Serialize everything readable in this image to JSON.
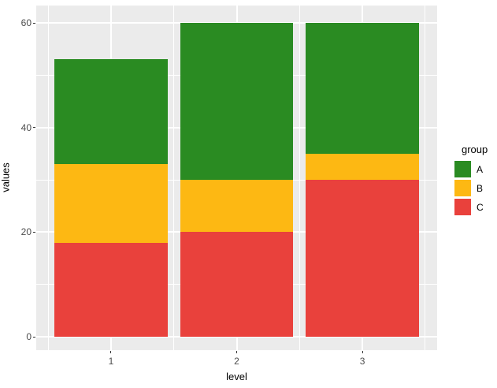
{
  "chart_data": {
    "type": "bar",
    "stacked": true,
    "title": "",
    "xlabel": "level",
    "ylabel": "values",
    "categories": [
      1,
      2,
      3
    ],
    "series": [
      {
        "name": "A",
        "color": "#2A8B22",
        "values": [
          20,
          30,
          25
        ]
      },
      {
        "name": "B",
        "color": "#FDB813",
        "values": [
          15,
          10,
          5
        ]
      },
      {
        "name": "C",
        "color": "#E9413C",
        "values": [
          18,
          20,
          30
        ]
      }
    ],
    "stack_order_bottom_to_top": [
      "C",
      "B",
      "A"
    ],
    "totals": [
      53,
      60,
      60
    ],
    "ylim": [
      0,
      60
    ],
    "yticks": [
      0,
      20,
      40,
      60
    ],
    "yticks_minor": [
      10,
      30,
      50
    ],
    "xticks": [
      1,
      2,
      3
    ],
    "xticks_minor": [
      0.5,
      1.5,
      2.5,
      3.5
    ],
    "bar_width_fraction": 0.9,
    "grid": true,
    "legend": {
      "title": "group",
      "position": "right",
      "entries": [
        "A",
        "B",
        "C"
      ]
    },
    "colors": {
      "panel_background": "#EBEBEB",
      "gridline": "#FFFFFF",
      "tick_label": "#4D4D4D",
      "axis_title": "#000000"
    }
  }
}
